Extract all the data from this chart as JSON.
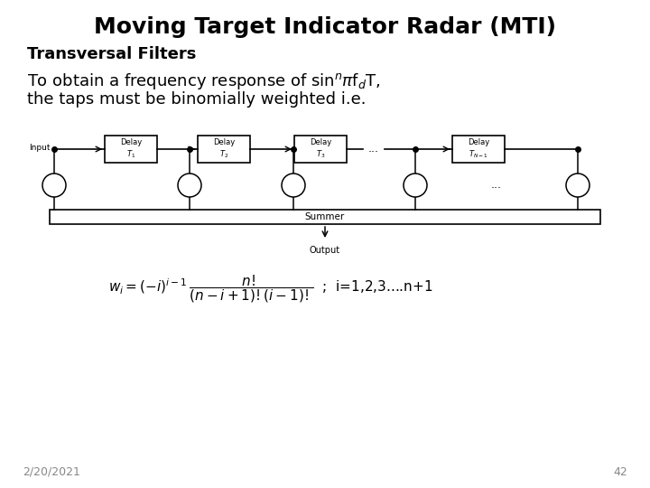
{
  "title": "Moving Target Indicator Radar (MTI)",
  "subtitle": "Transversal Filters",
  "date_text": "2/20/2021",
  "page_num": "42",
  "background_color": "#ffffff",
  "title_fontsize": 18,
  "subtitle_fontsize": 13,
  "body_fontsize": 13,
  "footer_fontsize": 9,
  "diagram_fontsize": 7,
  "formula_fontsize": 11
}
